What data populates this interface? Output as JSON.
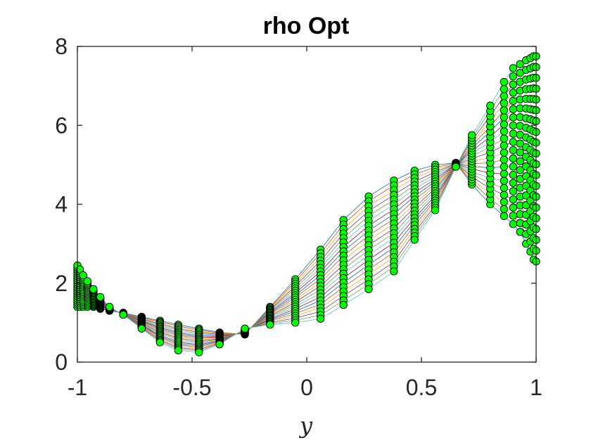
{
  "chart_data": {
    "type": "line",
    "title": "rho Opt",
    "xlabel": "y",
    "ylabel": "",
    "xlim": [
      -1,
      1
    ],
    "ylim": [
      0,
      8
    ],
    "xticks": [
      -1,
      -0.5,
      0,
      0.5,
      1
    ],
    "xtick_labels": [
      "-1",
      "-0.5",
      "0",
      "0.5",
      "1"
    ],
    "yticks": [
      0,
      2,
      4,
      6,
      8
    ],
    "ytick_labels": [
      "0",
      "2",
      "4",
      "6",
      "8"
    ],
    "grid": false,
    "marker_color": "#00ff00",
    "marker_edge": "#000000",
    "line_colors": [
      "#0072bd",
      "#d95319",
      "#edb120",
      "#7e2f8e",
      "#77ac30",
      "#4dbeee",
      "#a2142f"
    ],
    "num_series": 20,
    "x": [
      -1.0,
      -0.989,
      -0.975,
      -0.956,
      -0.93,
      -0.9,
      -0.86,
      -0.8,
      -0.72,
      -0.64,
      -0.56,
      -0.47,
      -0.38,
      -0.27,
      -0.16,
      -0.05,
      0.06,
      0.16,
      0.27,
      0.38,
      0.47,
      0.56,
      0.65,
      0.72,
      0.8,
      0.86,
      0.9,
      0.93,
      0.956,
      0.975,
      0.989,
      1.0
    ],
    "series_first": [
      1.4,
      1.4,
      1.4,
      1.4,
      1.4,
      1.35,
      1.3,
      1.25,
      1.15,
      1.05,
      0.95,
      0.85,
      0.75,
      0.7,
      1.4,
      2.1,
      2.85,
      3.6,
      4.2,
      4.6,
      4.85,
      5.0,
      5.05,
      4.5,
      4.0,
      3.7,
      3.5,
      3.3,
      3.0,
      2.8,
      2.6,
      2.55
    ],
    "series_last": [
      2.45,
      2.35,
      2.2,
      2.05,
      1.85,
      1.65,
      1.4,
      1.2,
      0.85,
      0.5,
      0.3,
      0.25,
      0.45,
      0.85,
      0.95,
      1.0,
      1.1,
      1.45,
      1.85,
      2.3,
      3.1,
      3.85,
      4.95,
      5.75,
      6.5,
      7.1,
      7.45,
      7.55,
      7.65,
      7.7,
      7.75,
      7.75
    ]
  }
}
